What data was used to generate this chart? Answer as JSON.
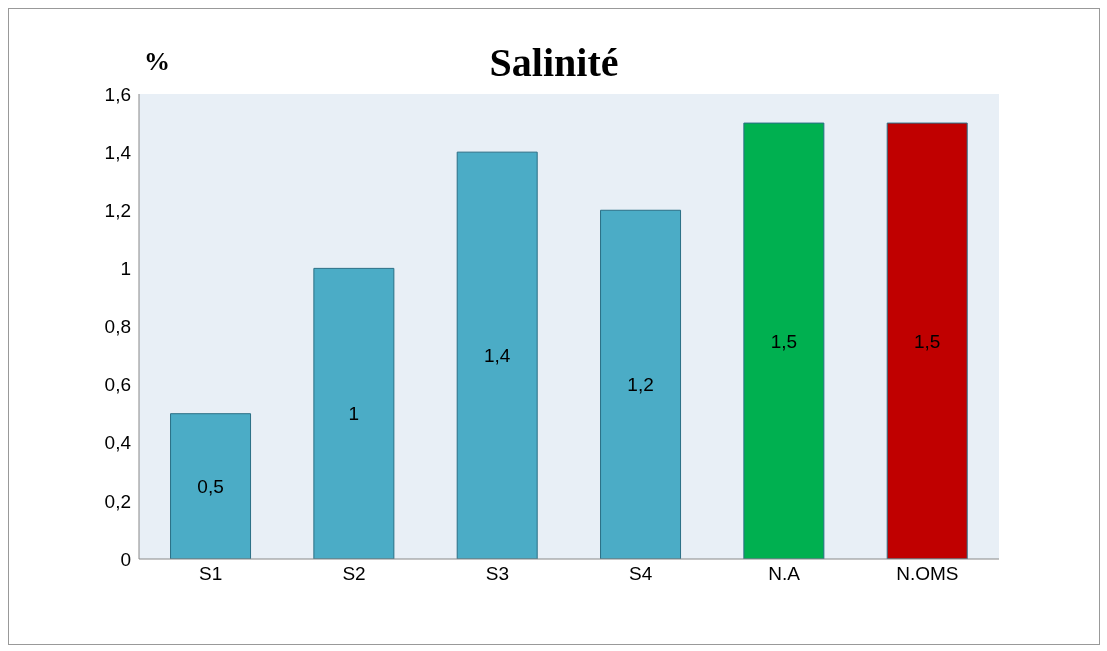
{
  "chart_data": {
    "type": "bar",
    "title": "Salinité",
    "ylabel": "%",
    "categories": [
      "S1",
      "S2",
      "S3",
      "S4",
      "N.A",
      "N.OMS"
    ],
    "values": [
      0.5,
      1,
      1.4,
      1.2,
      1.5,
      1.5
    ],
    "colors": [
      "#4bacc6",
      "#4bacc6",
      "#4bacc6",
      "#4bacc6",
      "#00b050",
      "#c00000"
    ],
    "value_labels": [
      "0,5",
      "1",
      "1,4",
      "1,2",
      "1,5",
      "1,5"
    ],
    "ylim": [
      0,
      1.6
    ],
    "yticks": [
      0,
      {
        "value": 0.2,
        "label": "0,2"
      },
      {
        "value": 0.4,
        "label": "0,4"
      },
      {
        "value": 0.6,
        "label": "0,6"
      },
      {
        "value": 0.8,
        "label": "0,8"
      },
      1,
      {
        "value": 1.2,
        "label": "1,2"
      },
      {
        "value": 1.4,
        "label": "1,4"
      },
      {
        "value": 1.6,
        "label": "1,6"
      }
    ],
    "grid": false,
    "legend": false
  }
}
